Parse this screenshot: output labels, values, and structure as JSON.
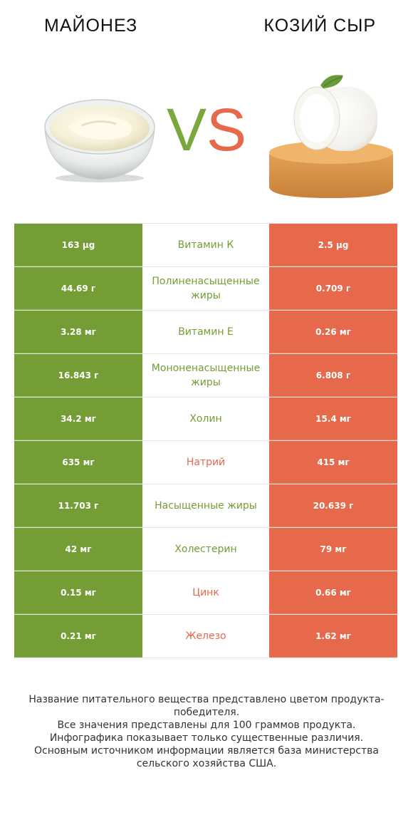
{
  "header": {
    "left_title": "МАЙОНЕЗ",
    "right_title": "КОЗИЙ СЫР",
    "vs_v": "V",
    "vs_s": "S"
  },
  "colors": {
    "winner_left": "#759d35",
    "winner_right": "#e5694a"
  },
  "rows": [
    {
      "left": "163 µg",
      "name": "Витамин К",
      "right": "2.5 µg",
      "winner": "left"
    },
    {
      "left": "44.69 г",
      "name": "Полиненасыщенные жиры",
      "right": "0.709 г",
      "winner": "left"
    },
    {
      "left": "3.28 мг",
      "name": "Витамин E",
      "right": "0.26 мг",
      "winner": "left"
    },
    {
      "left": "16.843 г",
      "name": "Мононенасыщенные жиры",
      "right": "6.808 г",
      "winner": "left"
    },
    {
      "left": "34.2 мг",
      "name": "Холин",
      "right": "15.4 мг",
      "winner": "left"
    },
    {
      "left": "635 мг",
      "name": "Натрий",
      "right": "415 мг",
      "winner": "right"
    },
    {
      "left": "11.703 г",
      "name": "Насыщенные жиры",
      "right": "20.639 г",
      "winner": "left"
    },
    {
      "left": "42 мг",
      "name": "Холестерин",
      "right": "79 мг",
      "winner": "left"
    },
    {
      "left": "0.15 мг",
      "name": "Цинк",
      "right": "0.66 мг",
      "winner": "right"
    },
    {
      "left": "0.21 мг",
      "name": "Железо",
      "right": "1.62 мг",
      "winner": "right"
    }
  ],
  "footer": {
    "line1": "Название питательного вещества представлено цветом продукта-победителя.",
    "line2": "Все значения представлены для 100 граммов продукта.",
    "line3": "Инфографика показывает только существенные различия.",
    "line4": "Основным источником информации является база министерства сельского хозяйства США."
  }
}
